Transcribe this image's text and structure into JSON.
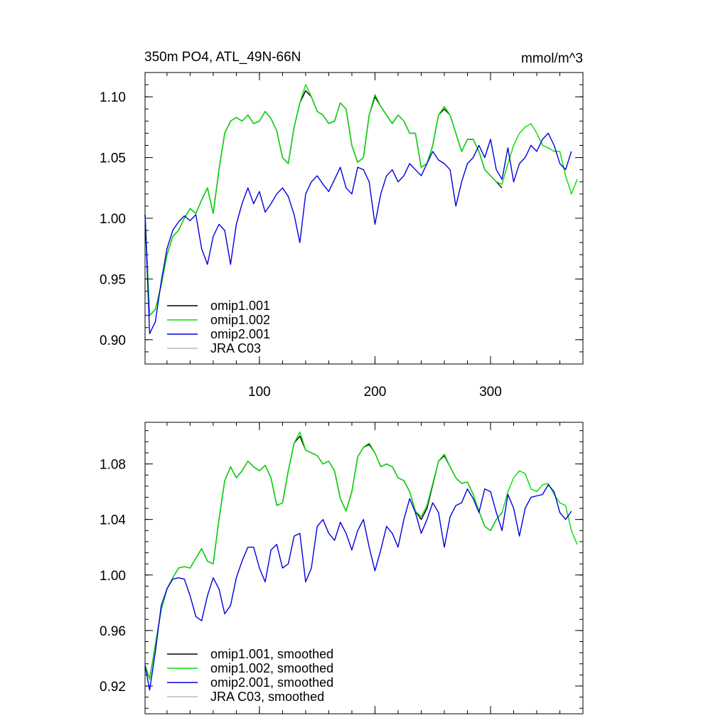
{
  "chart_data": [
    {
      "type": "line",
      "title": "350m PO4, ATL_49N-66N",
      "units": "mmol/m^3",
      "xlabel": "",
      "ylabel": "",
      "xlim": [
        1,
        380
      ],
      "ylim": [
        0.88,
        1.12
      ],
      "xticks": [
        100,
        200,
        300
      ],
      "xtick_labels": [
        "100",
        "200",
        "300"
      ],
      "yticks": [
        0.9,
        0.95,
        1.0,
        1.05,
        1.1
      ],
      "ytick_labels": [
        "0.90",
        "0.95",
        "1.00",
        "1.05",
        "1.10"
      ],
      "grid": false,
      "legend_position": "bottom-left",
      "series": [
        {
          "name": "omip1.001",
          "color": "#000000",
          "x": [
            1,
            5,
            10,
            15,
            20,
            25,
            30,
            35,
            40,
            45,
            50,
            55,
            60,
            65,
            70,
            75,
            80,
            85,
            90,
            95,
            100,
            105,
            110,
            115,
            120,
            125,
            130,
            135,
            140,
            145,
            150,
            155,
            160,
            165,
            170,
            175,
            180,
            185,
            190,
            195,
            200,
            205,
            210,
            215,
            220,
            225,
            230,
            235,
            240,
            245,
            250,
            255,
            260,
            265,
            270,
            275,
            280,
            285,
            290,
            295,
            300,
            305,
            310
          ],
          "y": [
            1.003,
            0.92,
            0.925,
            0.945,
            0.97,
            0.985,
            0.99,
            1.0,
            1.008,
            1.004,
            1.015,
            1.025,
            1.004,
            1.04,
            1.07,
            1.08,
            1.083,
            1.08,
            1.085,
            1.078,
            1.08,
            1.088,
            1.082,
            1.072,
            1.05,
            1.045,
            1.075,
            1.095,
            1.105,
            1.1,
            1.088,
            1.085,
            1.078,
            1.08,
            1.095,
            1.09,
            1.06,
            1.046,
            1.05,
            1.085,
            1.1,
            1.092,
            1.085,
            1.078,
            1.085,
            1.08,
            1.07,
            1.07,
            1.042,
            1.045,
            1.06,
            1.085,
            1.09,
            1.085,
            1.07,
            1.055,
            1.065,
            1.065,
            1.055,
            1.04,
            1.035,
            1.03,
            1.025
          ]
        },
        {
          "name": "omip1.002",
          "color": "#00dd00",
          "x": [
            1,
            5,
            10,
            15,
            20,
            25,
            30,
            35,
            40,
            45,
            50,
            55,
            60,
            65,
            70,
            75,
            80,
            85,
            90,
            95,
            100,
            105,
            110,
            115,
            120,
            125,
            130,
            135,
            140,
            145,
            150,
            155,
            160,
            165,
            170,
            175,
            180,
            185,
            190,
            195,
            200,
            205,
            210,
            215,
            220,
            225,
            230,
            235,
            240,
            245,
            250,
            255,
            260,
            265,
            270,
            275,
            280,
            285,
            290,
            295,
            300,
            305,
            310,
            315,
            320,
            325,
            330,
            335,
            340,
            345,
            350,
            355,
            360,
            365,
            370,
            375
          ],
          "y": [
            1.003,
            0.92,
            0.925,
            0.945,
            0.97,
            0.985,
            0.99,
            1.0,
            1.008,
            1.004,
            1.015,
            1.025,
            1.004,
            1.04,
            1.07,
            1.08,
            1.083,
            1.08,
            1.085,
            1.078,
            1.08,
            1.088,
            1.082,
            1.072,
            1.05,
            1.045,
            1.075,
            1.095,
            1.11,
            1.1,
            1.088,
            1.085,
            1.078,
            1.08,
            1.095,
            1.09,
            1.06,
            1.046,
            1.05,
            1.085,
            1.102,
            1.092,
            1.085,
            1.078,
            1.085,
            1.08,
            1.07,
            1.07,
            1.042,
            1.045,
            1.06,
            1.085,
            1.092,
            1.085,
            1.07,
            1.055,
            1.065,
            1.065,
            1.055,
            1.04,
            1.035,
            1.03,
            1.028,
            1.045,
            1.06,
            1.07,
            1.075,
            1.078,
            1.07,
            1.06,
            1.058,
            1.055,
            1.055,
            1.035,
            1.02,
            1.032
          ]
        },
        {
          "name": "omip2.001",
          "color": "#0000dd",
          "x": [
            1,
            5,
            10,
            15,
            20,
            25,
            30,
            35,
            40,
            45,
            50,
            55,
            60,
            65,
            70,
            75,
            80,
            85,
            90,
            95,
            100,
            105,
            110,
            115,
            120,
            125,
            130,
            135,
            140,
            145,
            150,
            155,
            160,
            165,
            170,
            175,
            180,
            185,
            190,
            195,
            200,
            205,
            210,
            215,
            220,
            225,
            230,
            235,
            240,
            245,
            250,
            255,
            260,
            265,
            270,
            275,
            280,
            285,
            290,
            295,
            300,
            305,
            310,
            315,
            320,
            325,
            330,
            335,
            340,
            345,
            350,
            355,
            360,
            365,
            370
          ],
          "y": [
            1.003,
            0.905,
            0.915,
            0.948,
            0.975,
            0.99,
            0.997,
            1.002,
            0.998,
            1.003,
            0.975,
            0.962,
            0.985,
            0.995,
            0.99,
            0.962,
            0.995,
            1.012,
            1.025,
            1.012,
            1.022,
            1.005,
            1.012,
            1.02,
            1.025,
            1.018,
            1.003,
            0.98,
            1.02,
            1.03,
            1.035,
            1.028,
            1.022,
            1.032,
            1.042,
            1.025,
            1.02,
            1.042,
            1.04,
            1.03,
            0.995,
            1.02,
            1.035,
            1.04,
            1.03,
            1.035,
            1.045,
            1.04,
            1.035,
            1.045,
            1.055,
            1.048,
            1.045,
            1.04,
            1.01,
            1.03,
            1.045,
            1.05,
            1.06,
            1.05,
            1.065,
            1.04,
            1.032,
            1.058,
            1.03,
            1.045,
            1.05,
            1.06,
            1.055,
            1.065,
            1.07,
            1.06,
            1.045,
            1.04,
            1.055
          ]
        },
        {
          "name": "JRA C03",
          "color": "#bbbbbb",
          "x": [],
          "y": []
        }
      ]
    },
    {
      "type": "line",
      "title": "",
      "units": "",
      "xlabel": "",
      "ylabel": "",
      "xlim": [
        1,
        380
      ],
      "ylim": [
        0.9,
        1.11
      ],
      "xticks": [
        100,
        200,
        300
      ],
      "xtick_labels": [],
      "yticks": [
        0.92,
        0.96,
        1.0,
        1.04,
        1.08
      ],
      "ytick_labels": [
        "0.92",
        "0.96",
        "1.00",
        "1.04",
        "1.08"
      ],
      "grid": false,
      "legend_position": "bottom-left",
      "series": [
        {
          "name": "omip1.001, smoothed",
          "color": "#000000",
          "x": [
            1,
            5,
            10,
            15,
            20,
            25,
            30,
            35,
            40,
            45,
            50,
            55,
            60,
            65,
            70,
            75,
            80,
            85,
            90,
            95,
            100,
            105,
            110,
            115,
            120,
            125,
            130,
            135,
            140,
            145,
            150,
            155,
            160,
            165,
            170,
            175,
            180,
            185,
            190,
            195,
            200,
            205,
            210,
            215,
            220,
            225,
            230,
            235,
            240,
            245,
            250,
            255,
            260,
            265,
            270,
            275,
            280,
            285,
            290,
            295,
            300,
            305,
            310
          ],
          "y": [
            0.935,
            0.925,
            0.95,
            0.975,
            0.99,
            0.998,
            1.005,
            1.006,
            1.005,
            1.012,
            1.019,
            1.01,
            1.008,
            1.04,
            1.068,
            1.078,
            1.07,
            1.075,
            1.082,
            1.078,
            1.075,
            1.079,
            1.07,
            1.05,
            1.052,
            1.075,
            1.095,
            1.1,
            1.09,
            1.088,
            1.086,
            1.08,
            1.082,
            1.075,
            1.055,
            1.046,
            1.06,
            1.085,
            1.092,
            1.094,
            1.088,
            1.078,
            1.08,
            1.078,
            1.07,
            1.068,
            1.06,
            1.046,
            1.04,
            1.048,
            1.065,
            1.082,
            1.086,
            1.078,
            1.07,
            1.066,
            1.067,
            1.058,
            1.046,
            1.035,
            1.032,
            1.04,
            1.045
          ]
        },
        {
          "name": "omip1.002, smoothed",
          "color": "#00dd00",
          "x": [
            1,
            5,
            10,
            15,
            20,
            25,
            30,
            35,
            40,
            45,
            50,
            55,
            60,
            65,
            70,
            75,
            80,
            85,
            90,
            95,
            100,
            105,
            110,
            115,
            120,
            125,
            130,
            135,
            140,
            145,
            150,
            155,
            160,
            165,
            170,
            175,
            180,
            185,
            190,
            195,
            200,
            205,
            210,
            215,
            220,
            225,
            230,
            235,
            240,
            245,
            250,
            255,
            260,
            265,
            270,
            275,
            280,
            285,
            290,
            295,
            300,
            305,
            310,
            315,
            320,
            325,
            330,
            335,
            340,
            345,
            350,
            355,
            360,
            365,
            370,
            375
          ],
          "y": [
            0.935,
            0.925,
            0.95,
            0.975,
            0.99,
            0.998,
            1.005,
            1.006,
            1.005,
            1.012,
            1.019,
            1.01,
            1.008,
            1.04,
            1.068,
            1.078,
            1.07,
            1.075,
            1.082,
            1.078,
            1.075,
            1.079,
            1.07,
            1.05,
            1.052,
            1.075,
            1.095,
            1.103,
            1.09,
            1.088,
            1.086,
            1.08,
            1.082,
            1.075,
            1.055,
            1.046,
            1.06,
            1.085,
            1.092,
            1.095,
            1.088,
            1.078,
            1.08,
            1.078,
            1.07,
            1.068,
            1.06,
            1.046,
            1.042,
            1.05,
            1.066,
            1.082,
            1.087,
            1.078,
            1.07,
            1.066,
            1.067,
            1.058,
            1.046,
            1.035,
            1.032,
            1.04,
            1.045,
            1.06,
            1.07,
            1.075,
            1.073,
            1.062,
            1.06,
            1.065,
            1.066,
            1.058,
            1.052,
            1.05,
            1.032,
            1.022
          ]
        },
        {
          "name": "omip2.001, smoothed",
          "color": "#0000dd",
          "x": [
            1,
            5,
            10,
            15,
            20,
            25,
            30,
            35,
            40,
            45,
            50,
            55,
            60,
            65,
            70,
            75,
            80,
            85,
            90,
            95,
            100,
            105,
            110,
            115,
            120,
            125,
            130,
            135,
            140,
            145,
            150,
            155,
            160,
            165,
            170,
            175,
            180,
            185,
            190,
            195,
            200,
            205,
            210,
            215,
            220,
            225,
            230,
            235,
            240,
            245,
            250,
            255,
            260,
            265,
            270,
            275,
            280,
            285,
            290,
            295,
            300,
            305,
            310,
            315,
            320,
            325,
            330,
            335,
            340,
            345,
            350,
            355,
            360,
            365,
            370
          ],
          "y": [
            0.935,
            0.917,
            0.945,
            0.978,
            0.99,
            0.997,
            0.998,
            0.997,
            0.985,
            0.97,
            0.967,
            0.985,
            0.998,
            0.99,
            0.972,
            0.978,
            0.998,
            1.01,
            1.02,
            1.02,
            1.005,
            0.995,
            1.018,
            1.022,
            1.005,
            1.008,
            1.028,
            1.03,
            0.995,
            1.005,
            1.035,
            1.04,
            1.03,
            1.025,
            1.038,
            1.03,
            1.018,
            1.032,
            1.04,
            1.02,
            1.003,
            1.018,
            1.035,
            1.03,
            1.02,
            1.04,
            1.055,
            1.045,
            1.03,
            1.04,
            1.052,
            1.045,
            1.02,
            1.042,
            1.05,
            1.052,
            1.062,
            1.055,
            1.045,
            1.062,
            1.06,
            1.045,
            1.032,
            1.058,
            1.048,
            1.028,
            1.048,
            1.056,
            1.057,
            1.058,
            1.065,
            1.06,
            1.045,
            1.04,
            1.046
          ]
        },
        {
          "name": "JRA C03, smoothed",
          "color": "#bbbbbb",
          "x": [],
          "y": []
        }
      ]
    }
  ]
}
